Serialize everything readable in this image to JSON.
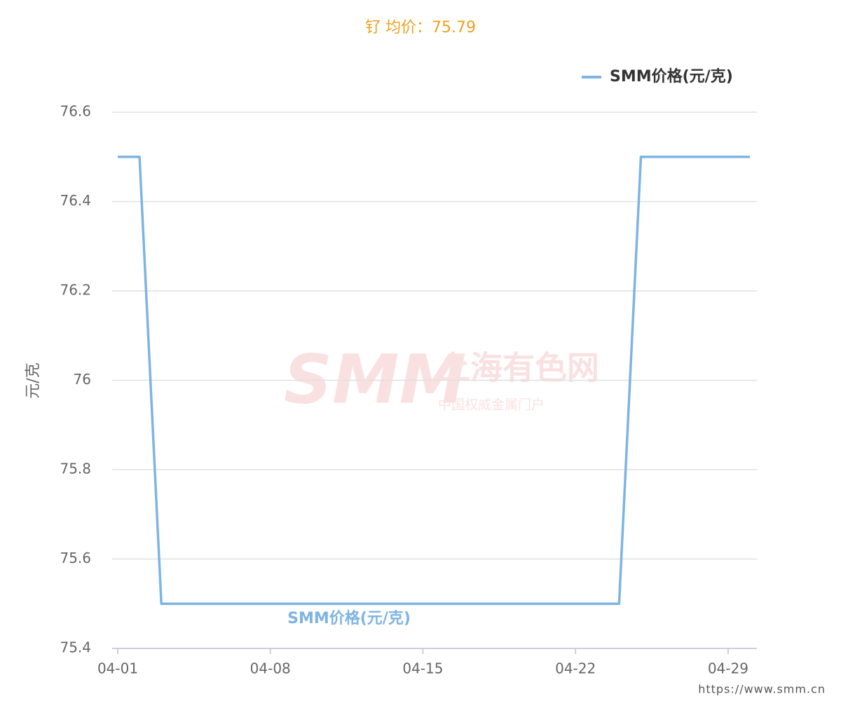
{
  "chart_data": {
    "type": "line",
    "title": "钌 均价：75.79",
    "y_label": "元/克",
    "x": [
      "04-01",
      "04-02",
      "04-03",
      "04-04",
      "04-05",
      "04-06",
      "04-07",
      "04-08",
      "04-09",
      "04-10",
      "04-11",
      "04-12",
      "04-13",
      "04-14",
      "04-15",
      "04-16",
      "04-17",
      "04-18",
      "04-19",
      "04-20",
      "04-21",
      "04-22",
      "04-23",
      "04-24",
      "04-25",
      "04-26",
      "04-27",
      "04-28",
      "04-29",
      "04-30"
    ],
    "series": [
      {
        "name": "SMM价格(元/克)",
        "color": "#7eb4e3",
        "values": [
          76.5,
          76.5,
          75.5,
          75.5,
          75.5,
          75.5,
          75.5,
          75.5,
          75.5,
          75.5,
          75.5,
          75.5,
          75.5,
          75.5,
          75.5,
          75.5,
          75.5,
          75.5,
          75.5,
          75.5,
          75.5,
          75.5,
          75.5,
          75.5,
          76.5,
          76.5,
          76.5,
          76.5,
          76.5,
          76.5
        ]
      }
    ],
    "ylim": [
      75.4,
      76.6
    ],
    "yticks": [
      75.4,
      75.6,
      75.8,
      76,
      76.2,
      76.4,
      76.6
    ],
    "xticks": [
      "04-01",
      "04-08",
      "04-15",
      "04-22",
      "04-29"
    ],
    "grid": true,
    "legend": "top-right",
    "watermark": {
      "logo": "SMM",
      "name": "上海有色网",
      "slogan": "中国权威金属门户"
    },
    "source": "https://www.smm.cn"
  }
}
